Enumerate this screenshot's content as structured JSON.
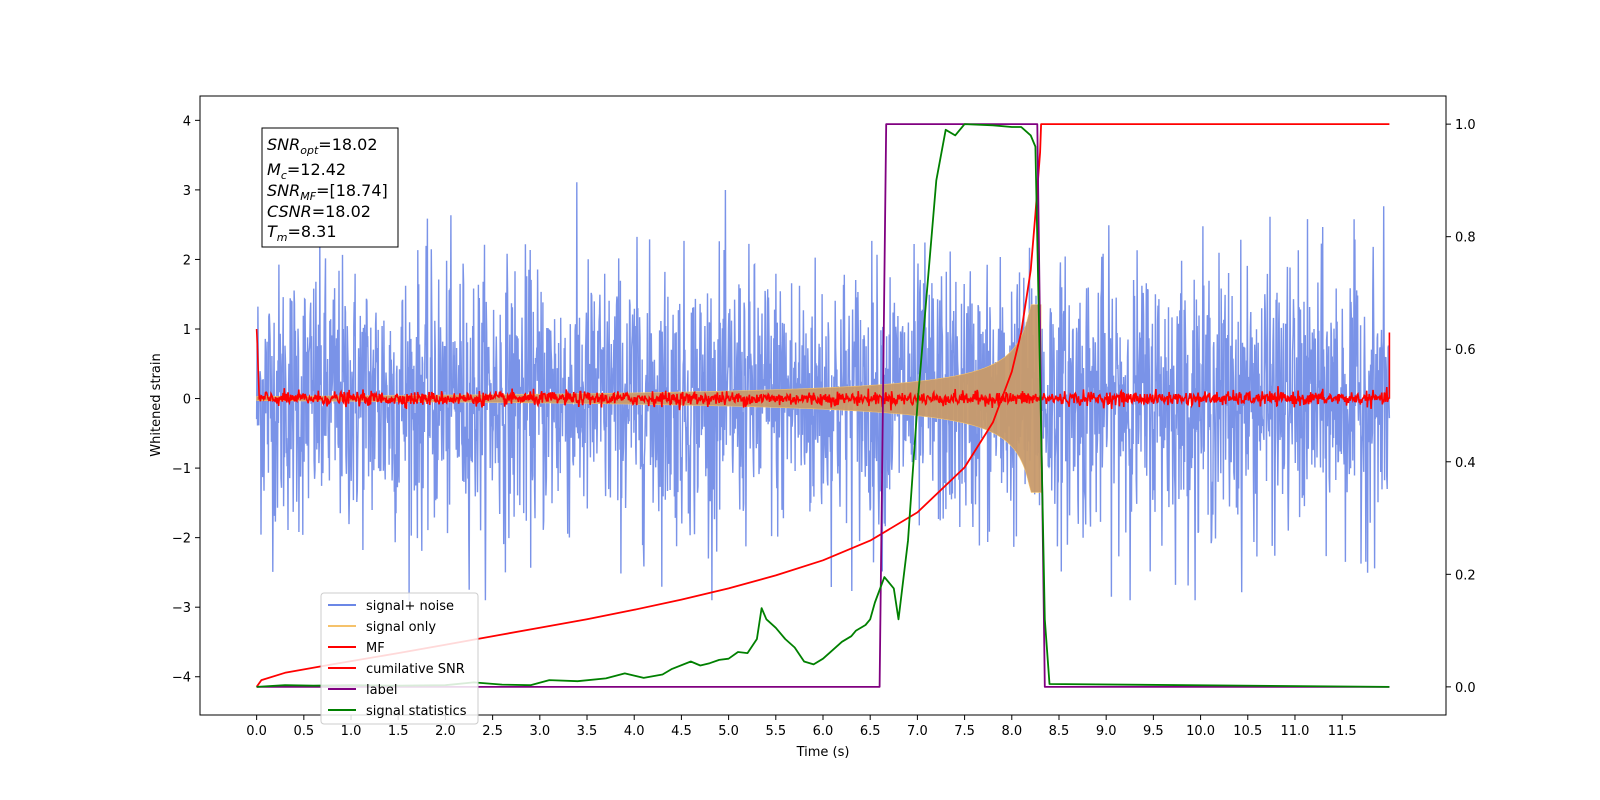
{
  "chart_data": {
    "type": "line",
    "xlabel": "Time (s)",
    "ylabel": "Whitened strain",
    "xlim": [
      -0.6,
      12.6
    ],
    "ylim": [
      -4.55,
      4.35
    ],
    "y2lim": [
      -0.05,
      1.05
    ],
    "x_ticks": [
      "0.0",
      "0.5",
      "1.0",
      "1.5",
      "2.0",
      "2.5",
      "3.0",
      "3.5",
      "4.0",
      "4.5",
      "5.0",
      "5.5",
      "6.0",
      "6.5",
      "7.0",
      "7.5",
      "8.0",
      "8.5",
      "9.0",
      "9.5",
      "10.0",
      "10.5",
      "11.0",
      "11.5"
    ],
    "y_ticks": [
      "4",
      "3",
      "2",
      "1",
      "0",
      "−1",
      "−2",
      "−3",
      "−4"
    ],
    "y2_ticks": [
      "1.0",
      "0.8",
      "0.6",
      "0.4",
      "0.2",
      "0.0"
    ],
    "annotation": {
      "snr_opt": {
        "base": "SNR",
        "sub": "opt",
        "value": "=18.02"
      },
      "mc": {
        "base": "M",
        "sub": "c",
        "value": "=12.42"
      },
      "snr_mf": {
        "base": "SNR",
        "sub": "MF",
        "value": "=[18.74]"
      },
      "csnr": {
        "base": "CSNR",
        "value": "=18.02"
      },
      "tm": {
        "base": "T",
        "sub": "m",
        "value": "=8.31"
      }
    },
    "legend": [
      {
        "name": "signal+ noise",
        "color": "#6b87e6"
      },
      {
        "name": "signal only",
        "color": "#f5c26b"
      },
      {
        "name": "MF",
        "color": "#ff0000"
      },
      {
        "name": "cumilative SNR",
        "color": "#ff0000"
      },
      {
        "name": "label",
        "color": "#800080"
      },
      {
        "name": "signal statistics",
        "color": "#008000"
      }
    ],
    "legend_position": "lower-left",
    "series": [
      {
        "name": "signal+ noise",
        "axis": "left",
        "color": "#6b87e6",
        "description_values": {
          "t_start": 0.0,
          "t_end": 12.0,
          "noise_std": 0.95,
          "peak_max": 3.3,
          "peak_min": -2.9
        }
      },
      {
        "name": "signal only",
        "axis": "left",
        "color": "#f5c26b",
        "chirp": {
          "t_start": 0.0,
          "t_merge": 8.31,
          "amp_at_merge": 1.35,
          "amp_at_start": 0.03
        }
      },
      {
        "name": "MF",
        "axis": "left",
        "color": "#ff0000",
        "start_value": 1.0,
        "noise_std": 0.05,
        "end_value": 0.95
      },
      {
        "name": "cumilative SNR",
        "axis": "right",
        "color": "#ff0000",
        "x": [
          0.0,
          0.05,
          0.3,
          0.8,
          1.5,
          2.0,
          2.5,
          3.0,
          3.5,
          4.0,
          4.5,
          5.0,
          5.5,
          6.0,
          6.5,
          7.0,
          7.5,
          7.8,
          8.0,
          8.1,
          8.2,
          8.25,
          8.3,
          8.31,
          12.0
        ],
        "y": [
          0.0,
          0.012,
          0.025,
          0.04,
          0.06,
          0.075,
          0.09,
          0.105,
          0.12,
          0.137,
          0.155,
          0.175,
          0.198,
          0.225,
          0.26,
          0.31,
          0.39,
          0.47,
          0.56,
          0.63,
          0.74,
          0.84,
          0.95,
          1.0,
          1.0
        ]
      },
      {
        "name": "label",
        "axis": "right",
        "color": "#800080",
        "x": [
          0.0,
          6.6,
          6.67,
          8.27,
          8.35,
          12.0
        ],
        "y": [
          0.0,
          0.0,
          1.0,
          1.0,
          0.0,
          0.0
        ]
      },
      {
        "name": "signal statistics",
        "axis": "right",
        "color": "#008000",
        "x": [
          0.0,
          0.3,
          0.6,
          1.0,
          1.5,
          2.0,
          2.3,
          2.6,
          2.9,
          3.1,
          3.4,
          3.7,
          3.9,
          4.0,
          4.1,
          4.3,
          4.4,
          4.6,
          4.7,
          4.8,
          4.9,
          5.0,
          5.1,
          5.2,
          5.3,
          5.35,
          5.4,
          5.5,
          5.6,
          5.7,
          5.8,
          5.9,
          6.0,
          6.1,
          6.2,
          6.3,
          6.35,
          6.45,
          6.5,
          6.55,
          6.65,
          6.75,
          6.8,
          6.9,
          7.0,
          7.1,
          7.2,
          7.3,
          7.4,
          7.5,
          7.8,
          8.0,
          8.1,
          8.2,
          8.25,
          8.3,
          8.35,
          8.4,
          12.0
        ],
        "y": [
          0.0,
          0.003,
          0.002,
          0.003,
          0.002,
          0.003,
          0.008,
          0.004,
          0.003,
          0.012,
          0.01,
          0.015,
          0.024,
          0.02,
          0.016,
          0.022,
          0.032,
          0.045,
          0.038,
          0.042,
          0.048,
          0.05,
          0.062,
          0.06,
          0.085,
          0.14,
          0.12,
          0.105,
          0.085,
          0.07,
          0.045,
          0.04,
          0.05,
          0.065,
          0.08,
          0.09,
          0.1,
          0.11,
          0.12,
          0.15,
          0.195,
          0.175,
          0.12,
          0.26,
          0.5,
          0.7,
          0.9,
          0.99,
          0.98,
          1.0,
          0.998,
          0.995,
          0.995,
          0.98,
          0.96,
          0.55,
          0.12,
          0.005,
          0.0
        ]
      }
    ]
  }
}
